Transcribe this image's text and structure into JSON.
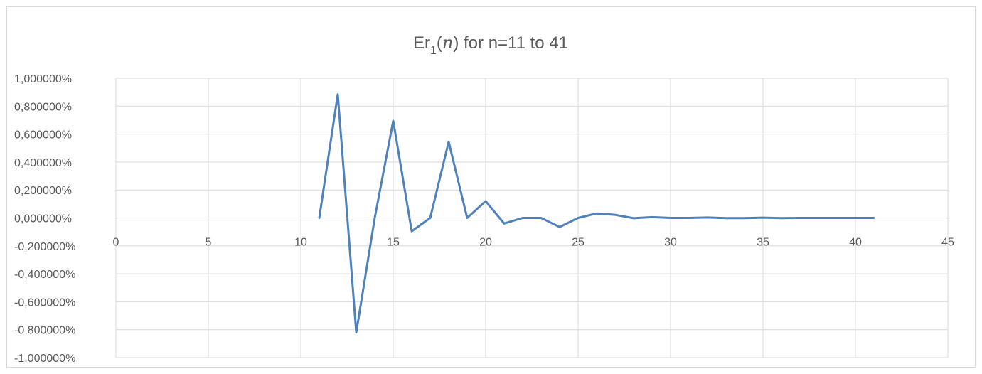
{
  "chart_data": {
    "type": "line",
    "title": {
      "prefix": "Er",
      "subscript": "1",
      "open": "(",
      "variable": "n",
      "close": ")",
      "suffix": " for n=11 to 41"
    },
    "xlabel": "",
    "ylabel": "",
    "xlim": [
      0,
      45
    ],
    "ylim": [
      -1.0,
      1.0
    ],
    "x_ticks": [
      0,
      5,
      10,
      15,
      20,
      25,
      30,
      35,
      40,
      45
    ],
    "x_tick_labels": [
      "0",
      "5",
      "10",
      "15",
      "20",
      "25",
      "30",
      "35",
      "40",
      "45"
    ],
    "y_ticks": [
      1.0,
      0.8,
      0.6,
      0.4,
      0.2,
      0.0,
      -0.2,
      -0.4,
      -0.6,
      -0.8,
      -1.0
    ],
    "y_tick_labels": [
      "1,000000%",
      "0,800000%",
      "0,600000%",
      "0,400000%",
      "0,200000%",
      "0,000000%",
      "-0,200000%",
      "-0,400000%",
      "-0,600000%",
      "-0,800000%",
      "-1,000000%"
    ],
    "grid": true,
    "legend": "none",
    "series": [
      {
        "color": "#4f81bd",
        "x": [
          11,
          12,
          13,
          14,
          15,
          16,
          17,
          18,
          19,
          20,
          21,
          22,
          23,
          24,
          25,
          26,
          27,
          28,
          29,
          30,
          31,
          32,
          33,
          34,
          35,
          36,
          37,
          38,
          39,
          40,
          41
        ],
        "y": [
          0.0,
          0.885,
          -0.82,
          0.0,
          0.695,
          -0.095,
          0.0,
          0.545,
          0.0,
          0.12,
          -0.04,
          0.0,
          0.0,
          -0.065,
          0.0,
          0.032,
          0.022,
          -0.002,
          0.006,
          0.0,
          0.0,
          0.003,
          -0.001,
          -0.001,
          0.002,
          -0.001,
          0.0,
          0.0,
          0.0,
          0.0,
          0.0
        ]
      }
    ]
  }
}
